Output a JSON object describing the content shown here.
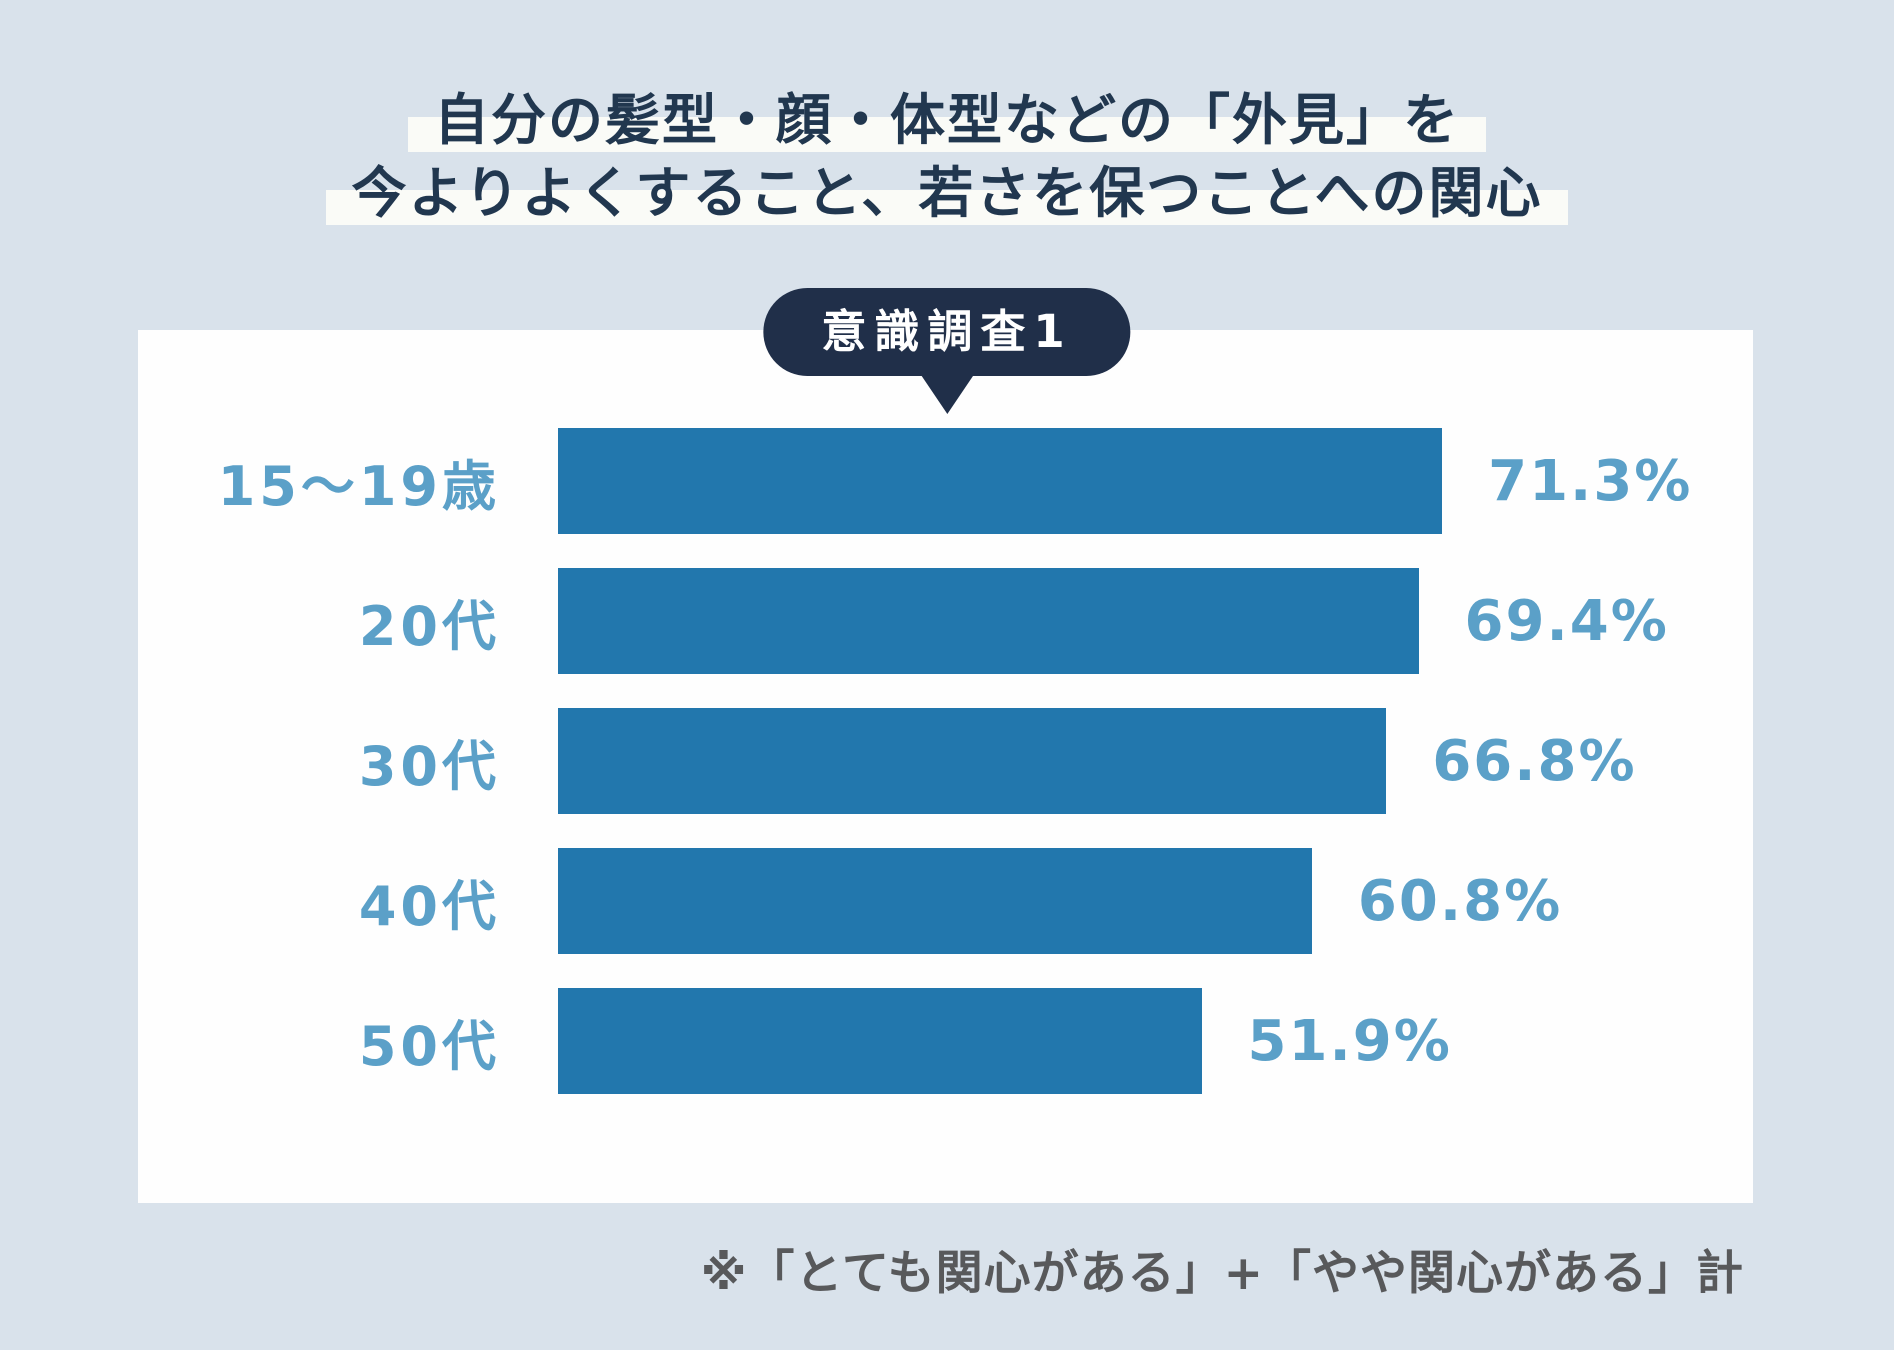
{
  "page": {
    "title_line1": "自分の髪型・顔・体型などの「外見」を",
    "title_line2": "今よりよくすること、若さを保つことへの関心",
    "badge_label": "意識調査1",
    "footnote": "※「とても関心がある」+「やや関心がある」計"
  },
  "colors": {
    "background": "#d9e2eb",
    "panel": "#fefefe",
    "title_text": "#21374f",
    "title_highlight_band": "#fafbf7",
    "badge_background": "#202f49",
    "badge_text": "#ffffff",
    "bar": "#2277ad",
    "category_and_value_text": "#5ba0c8",
    "footnote_text": "#58595b"
  },
  "chart_data": {
    "type": "bar",
    "orientation": "horizontal",
    "title": "自分の髪型・顔・体型などの「外見」を今よりよくすること、若さを保つことへの関心",
    "annotation": "意識調査1",
    "categories": [
      "15〜19歳",
      "20代",
      "30代",
      "40代",
      "50代"
    ],
    "values": [
      71.3,
      69.4,
      66.8,
      60.8,
      51.9
    ],
    "value_labels": [
      "71.3%",
      "69.4%",
      "66.8%",
      "60.8%",
      "51.9%"
    ],
    "unit": "%",
    "xlim": [
      0,
      100
    ],
    "grid": false,
    "legend": false,
    "note": "※「とても関心がある」+「やや関心がある」計"
  }
}
